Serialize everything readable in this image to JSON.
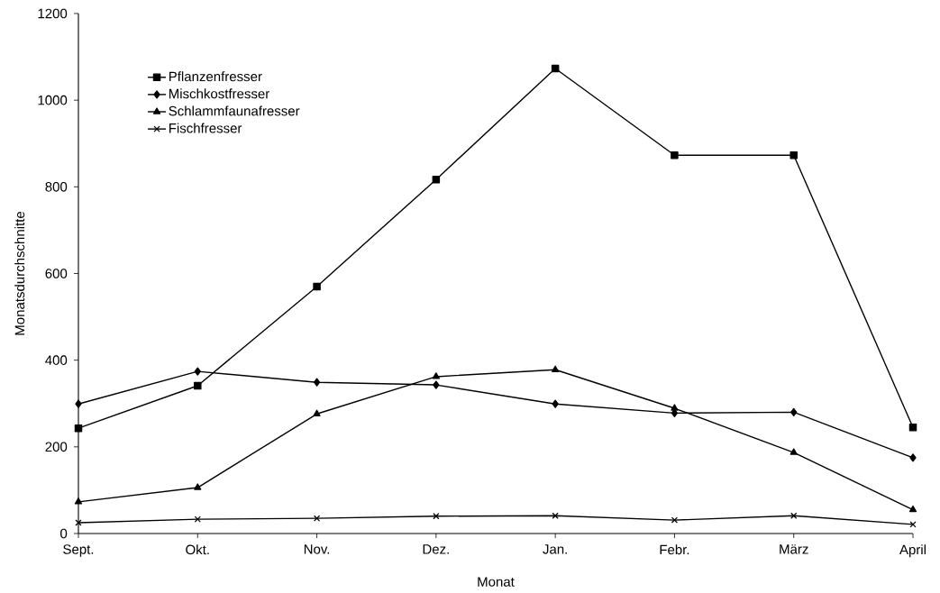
{
  "chart_data": {
    "type": "line",
    "xlabel": "Monat",
    "ylabel": "Monatsdurchschnitte",
    "categories": [
      "Sept.",
      "Okt.",
      "Nov.",
      "Dez.",
      "Jan.",
      "Febr.",
      "März",
      "April"
    ],
    "series": [
      {
        "name": "Pflanzenfresser",
        "color": "#000000",
        "marker": "square",
        "values": [
          243,
          341,
          570,
          817,
          1073,
          873,
          873,
          245
        ]
      },
      {
        "name": "Mischkostfresser",
        "color": "#000000",
        "marker": "diamond",
        "values": [
          299,
          374,
          349,
          343,
          299,
          278,
          280,
          175
        ]
      },
      {
        "name": "Schlammfaunafresser",
        "color": "#000000",
        "marker": "triangle",
        "values": [
          73,
          106,
          276,
          362,
          378,
          289,
          187,
          55
        ]
      },
      {
        "name": "Fischfresser",
        "color": "#000000",
        "marker": "cross",
        "values": [
          25,
          33,
          35,
          40,
          41,
          31,
          41,
          21
        ]
      }
    ],
    "ylim": [
      0,
      1200
    ],
    "yticks": [
      0,
      200,
      400,
      600,
      800,
      1000,
      1200
    ],
    "legend": "top left",
    "grid": false,
    "line_style": "solid"
  }
}
